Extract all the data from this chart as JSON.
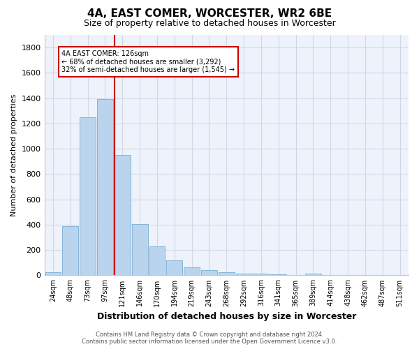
{
  "title": "4A, EAST COMER, WORCESTER, WR2 6BE",
  "subtitle": "Size of property relative to detached houses in Worcester",
  "xlabel": "Distribution of detached houses by size in Worcester",
  "ylabel": "Number of detached properties",
  "footer_line1": "Contains HM Land Registry data © Crown copyright and database right 2024.",
  "footer_line2": "Contains public sector information licensed under the Open Government Licence v3.0.",
  "bar_color": "#bad4ed",
  "bar_edge_color": "#7aadd4",
  "background_color": "#eef2fa",
  "grid_color": "#d0d8e8",
  "bins": [
    "24sqm",
    "48sqm",
    "73sqm",
    "97sqm",
    "121sqm",
    "146sqm",
    "170sqm",
    "194sqm",
    "219sqm",
    "243sqm",
    "268sqm",
    "292sqm",
    "316sqm",
    "341sqm",
    "365sqm",
    "389sqm",
    "414sqm",
    "438sqm",
    "462sqm",
    "487sqm",
    "511sqm"
  ],
  "values": [
    25,
    390,
    1250,
    1390,
    950,
    405,
    230,
    120,
    65,
    40,
    25,
    15,
    15,
    8,
    2,
    15,
    0,
    0,
    0,
    0,
    0
  ],
  "property_bin_index": 4,
  "annotation_line1": "4A EAST COMER: 126sqm",
  "annotation_line2": "← 68% of detached houses are smaller (3,292)",
  "annotation_line3": "32% of semi-detached houses are larger (1,545) →",
  "vline_color": "#cc0000",
  "annotation_box_color": "#cc0000",
  "ylim": [
    0,
    1900
  ],
  "yticks": [
    0,
    200,
    400,
    600,
    800,
    1000,
    1200,
    1400,
    1600,
    1800
  ]
}
